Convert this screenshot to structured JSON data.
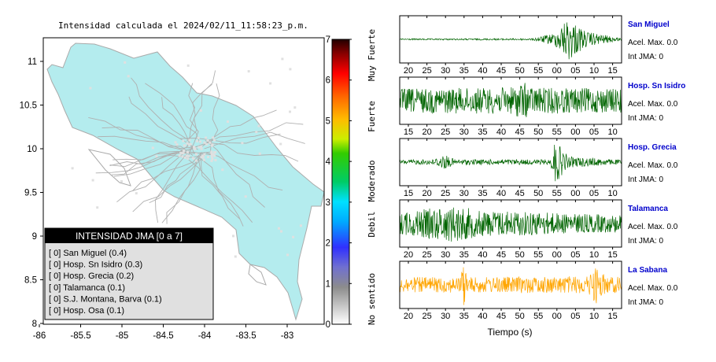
{
  "map": {
    "title": "Intensidad calculada el 2024/02/11_11:58:23_p.m.",
    "land_color": "#b4ecee",
    "x_ticks": [
      "-86",
      "-85.5",
      "-85",
      "-84.5",
      "-84",
      "-83.5",
      "-83"
    ],
    "y_ticks": [
      "11",
      "10.5",
      "10",
      "9.5",
      "9",
      "8.5",
      "8"
    ],
    "legend_title": "INTENSIDAD JMA [0 a 7]",
    "legend_items": [
      "[ 0] San Miguel (0.4)",
      "[ 0] Hosp. Sn Isidro (0.3)",
      "[ 0] Hosp. Grecia (0.2)",
      "[ 0] Talamanca (0.1)",
      "[ 0] S.J. Montana, Barva (0.1)",
      "[ 0] Hosp. Osa (0.1)"
    ]
  },
  "colorbar": {
    "ticks": [
      "0",
      "1",
      "2",
      "3",
      "4",
      "5",
      "6",
      "7"
    ],
    "labels": [
      "No sentido",
      "Debil",
      "Moderado",
      "Fuerte",
      "Muy Fuerte"
    ]
  },
  "chart_data": [
    {
      "type": "line",
      "station": "San Miguel",
      "acel_label": "Acel. Max. 0.0",
      "int_label": "Int JMA: 0",
      "color": "#006400",
      "x_tick_labels": [
        "20",
        "25",
        "30",
        "35",
        "40",
        "45",
        "50",
        "55",
        "00",
        "05",
        "10",
        "15"
      ],
      "x_first": 18.5,
      "envelope": [
        [
          0,
          0.03
        ],
        [
          0.6,
          0.04
        ],
        [
          0.7,
          0.3
        ],
        [
          0.76,
          1.0
        ],
        [
          0.84,
          0.35
        ],
        [
          1,
          0.05
        ]
      ]
    },
    {
      "type": "line",
      "station": "Hosp. Sn Isidro",
      "acel_label": "Acel. Max. 0.0",
      "int_label": "Int JMA: 0",
      "color": "#006400",
      "x_tick_labels": [
        "15",
        "20",
        "25",
        "30",
        "35",
        "40",
        "45",
        "50",
        "55",
        "00",
        "05",
        "10"
      ],
      "x_first": 13.5,
      "envelope": [
        [
          0,
          0.55
        ],
        [
          0.5,
          0.6
        ],
        [
          0.55,
          0.9
        ],
        [
          0.6,
          0.6
        ],
        [
          1,
          0.55
        ]
      ]
    },
    {
      "type": "line",
      "station": "Hosp. Grecia",
      "acel_label": "Acel. Max. 0.0",
      "int_label": "Int JMA: 0",
      "color": "#006400",
      "x_tick_labels": [
        "15",
        "20",
        "25",
        "30",
        "35",
        "40",
        "45",
        "50",
        "55",
        "00",
        "05",
        "10"
      ],
      "x_first": 13,
      "envelope": [
        [
          0,
          0.1
        ],
        [
          0.15,
          0.12
        ],
        [
          0.2,
          0.35
        ],
        [
          0.25,
          0.12
        ],
        [
          0.68,
          0.12
        ],
        [
          0.7,
          1.0
        ],
        [
          0.76,
          0.25
        ],
        [
          1,
          0.1
        ]
      ]
    },
    {
      "type": "line",
      "station": "Talamanca",
      "acel_label": "Acel. Max. 0.0",
      "int_label": "Int JMA: 0",
      "color": "#006400",
      "x_tick_labels": [
        "20",
        "25",
        "30",
        "35",
        "40",
        "45",
        "50",
        "55",
        "00",
        "05",
        "10",
        "15"
      ],
      "x_first": 18.5,
      "envelope": [
        [
          0,
          0.5
        ],
        [
          0.25,
          0.85
        ],
        [
          0.35,
          0.6
        ],
        [
          0.6,
          0.55
        ],
        [
          0.75,
          0.45
        ],
        [
          1,
          0.4
        ]
      ]
    },
    {
      "type": "line",
      "station": "La Sabana",
      "acel_label": "Acel. Max. 0.0",
      "int_label": "Int JMA: 0",
      "color": "#ffa500",
      "x_tick_labels": [
        "20",
        "25",
        "30",
        "35",
        "40",
        "45",
        "50",
        "55",
        "00",
        "05",
        "10",
        "15"
      ],
      "x_first": 18.5,
      "envelope": [
        [
          0,
          0.35
        ],
        [
          0.27,
          0.35
        ],
        [
          0.29,
          1.0
        ],
        [
          0.31,
          0.35
        ],
        [
          0.85,
          0.4
        ],
        [
          0.88,
          0.9
        ],
        [
          0.93,
          0.4
        ],
        [
          1,
          0.35
        ]
      ]
    }
  ],
  "waves": {
    "xlabel": "Tiempo (s)"
  }
}
